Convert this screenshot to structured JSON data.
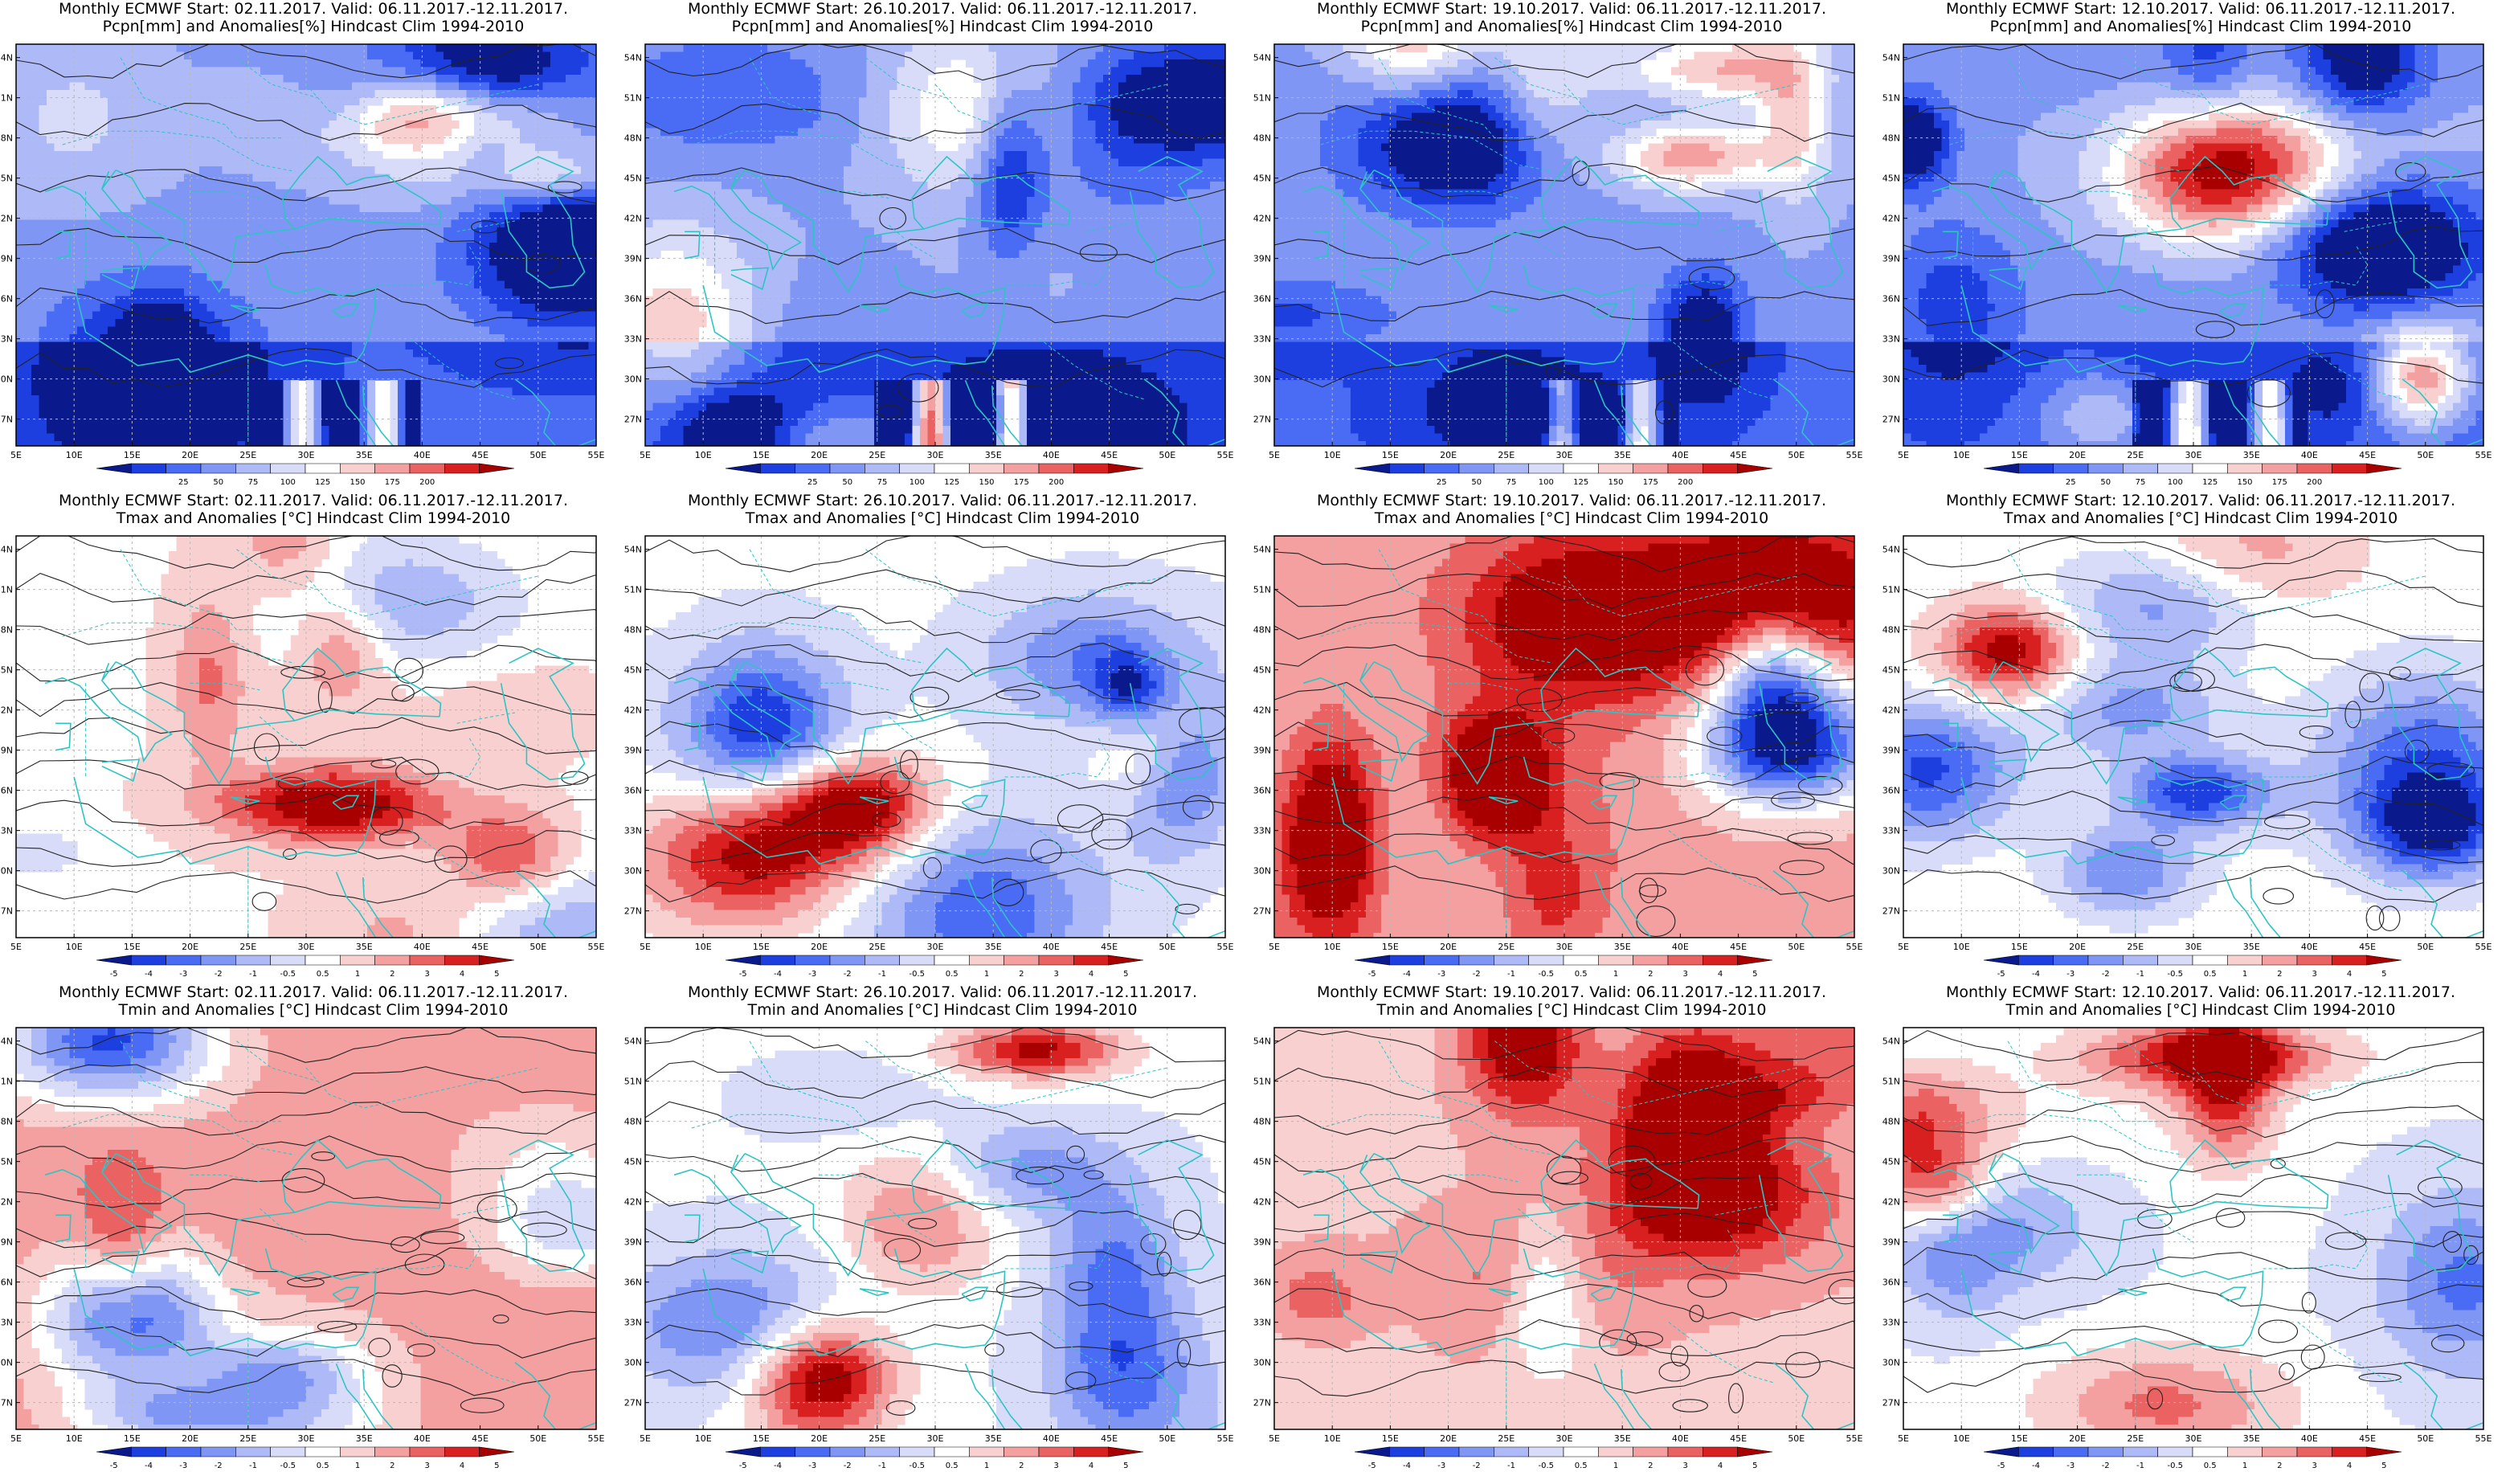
{
  "panels": [
    {
      "title1": "Monthly ECMWF Start: 02.11.2017. Valid: 06.11.2017.-12.11.2017.",
      "title2": "Pcpn[mm] and Anomalies[%] Hindcast Clim 1994-2010",
      "variable": "pcpn",
      "start": "02.11.2017."
    },
    {
      "title1": "Monthly ECMWF Start: 26.10.2017. Valid: 06.11.2017.-12.11.2017.",
      "title2": "Pcpn[mm] and Anomalies[%] Hindcast Clim 1994-2010",
      "variable": "pcpn",
      "start": "26.10.2017."
    },
    {
      "title1": "Monthly ECMWF Start: 19.10.2017. Valid: 06.11.2017.-12.11.2017.",
      "title2": "Pcpn[mm] and Anomalies[%] Hindcast Clim 1994-2010",
      "variable": "pcpn",
      "start": "19.10.2017."
    },
    {
      "title1": "Monthly ECMWF Start: 12.10.2017. Valid: 06.11.2017.-12.11.2017.",
      "title2": "Pcpn[mm] and Anomalies[%] Hindcast Clim 1994-2010",
      "variable": "pcpn",
      "start": "12.10.2017."
    },
    {
      "title1": "Monthly ECMWF Start: 02.11.2017. Valid: 06.11.2017.-12.11.2017.",
      "title2": "Tmax and Anomalies [°C] Hindcast Clim 1994-2010",
      "variable": "tmax",
      "start": "02.11.2017."
    },
    {
      "title1": "Monthly ECMWF Start: 26.10.2017. Valid: 06.11.2017.-12.11.2017.",
      "title2": "Tmax and Anomalies [°C] Hindcast Clim 1994-2010",
      "variable": "tmax",
      "start": "26.10.2017."
    },
    {
      "title1": "Monthly ECMWF Start: 19.10.2017. Valid: 06.11.2017.-12.11.2017.",
      "title2": "Tmax and Anomalies [°C] Hindcast Clim 1994-2010",
      "variable": "tmax",
      "start": "19.10.2017."
    },
    {
      "title1": "Monthly ECMWF Start: 12.10.2017. Valid: 06.11.2017.-12.11.2017.",
      "title2": "Tmax and Anomalies [°C] Hindcast Clim 1994-2010",
      "variable": "tmax",
      "start": "12.10.2017."
    },
    {
      "title1": "Monthly ECMWF Start: 02.11.2017. Valid: 06.11.2017.-12.11.2017.",
      "title2": "Tmin and Anomalies [°C] Hindcast Clim 1994-2010",
      "variable": "tmin",
      "start": "02.11.2017."
    },
    {
      "title1": "Monthly ECMWF Start: 26.10.2017. Valid: 06.11.2017.-12.11.2017.",
      "title2": "Tmin and Anomalies [°C] Hindcast Clim 1994-2010",
      "variable": "tmin",
      "start": "26.10.2017."
    },
    {
      "title1": "Monthly ECMWF Start: 19.10.2017. Valid: 06.11.2017.-12.11.2017.",
      "title2": "Tmin and Anomalies [°C] Hindcast Clim 1994-2010",
      "variable": "tmin",
      "start": "19.10.2017."
    },
    {
      "title1": "Monthly ECMWF Start: 12.10.2017. Valid: 06.11.2017.-12.11.2017.",
      "title2": "Tmin and Anomalies [°C] Hindcast Clim 1994-2010",
      "variable": "tmin",
      "start": "12.10.2017."
    }
  ],
  "axes": {
    "lon_ticks": [
      "5E",
      "10E",
      "15E",
      "20E",
      "25E",
      "30E",
      "35E",
      "40E",
      "45E",
      "50E",
      "55E"
    ],
    "lat_ticks": [
      "54N",
      "51N",
      "48N",
      "45N",
      "42N",
      "39N",
      "36N",
      "33N",
      "30N",
      "27N"
    ],
    "lon_range": [
      5,
      55
    ],
    "lat_range": [
      25,
      55
    ]
  },
  "colorbars": {
    "pcpn": {
      "labels": [
        "25",
        "50",
        "75",
        "100",
        "125",
        "150",
        "175",
        "200"
      ],
      "colors": [
        "#0a1a8c",
        "#1e3fe0",
        "#4a6cf5",
        "#7f96f5",
        "#aebaf7",
        "#d8dcf8",
        "#ffffff",
        "#f8d0d0",
        "#f4a0a0",
        "#ea6262",
        "#d82020",
        "#a80000"
      ]
    },
    "temp": {
      "labels": [
        "-5",
        "-4",
        "-3",
        "-2",
        "-1",
        "-0.5",
        "0.5",
        "1",
        "2",
        "3",
        "4",
        "5"
      ],
      "colors": [
        "#0a1a8c",
        "#1e3fe0",
        "#4a6cf5",
        "#7f96f5",
        "#aebaf7",
        "#d8dcf8",
        "#ffffff",
        "#f8d0d0",
        "#f4a0a0",
        "#ea6262",
        "#d82020",
        "#a80000"
      ]
    }
  },
  "colors": {
    "coast": "#2ec4c4",
    "contour": "#222222",
    "grid": "#b8b8b8",
    "missing": "#ffffff"
  }
}
